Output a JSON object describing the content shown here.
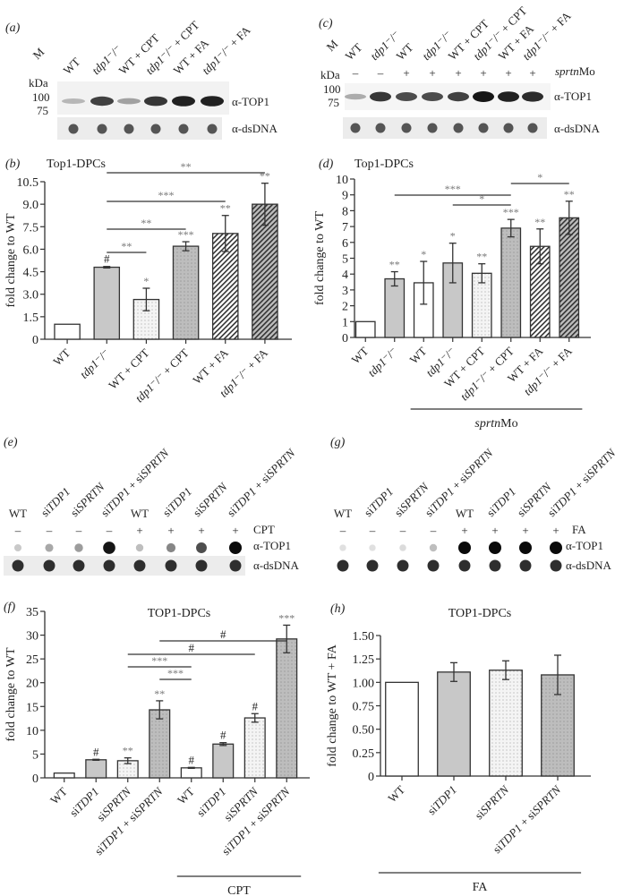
{
  "panels": {
    "a": {
      "label": "(a)",
      "marker": "M",
      "kda": "kDa",
      "mw": [
        "100",
        "75"
      ],
      "lanes": [
        "WT",
        "tdp1⁻/⁻",
        "WT + CPT",
        "tdp1⁻/⁻ + CPT",
        "WT + FA",
        "tdp1⁻/⁻ + FA"
      ],
      "blot_labels": [
        "α-TOP1",
        "α-dsDNA"
      ],
      "top1_intensity": [
        0.25,
        0.8,
        0.35,
        0.85,
        0.95,
        0.95
      ]
    },
    "c": {
      "label": "(c)",
      "marker": "M",
      "kda": "kDa",
      "mw": [
        "100",
        "75"
      ],
      "lanes": [
        "WT",
        "tdp1⁻/⁻",
        "WT",
        "tdp1⁻/⁻",
        "WT + CPT",
        "tdp1⁻/⁻ + CPT",
        "WT + FA",
        "tdp1⁻/⁻ + FA"
      ],
      "treatment_label": "sprtnMo",
      "treatment_signs": [
        "–",
        "–",
        "+",
        "+",
        "+",
        "+",
        "+",
        "+"
      ],
      "blot_labels": [
        "α-TOP1",
        "α-dsDNA"
      ],
      "top1_intensity": [
        0.3,
        0.85,
        0.75,
        0.75,
        0.8,
        1.0,
        0.95,
        0.9
      ]
    },
    "e": {
      "label": "(e)",
      "lanes": [
        "WT",
        "siTDP1",
        "siSPRTN",
        "siTDP1 + siSPRTN",
        "WT",
        "siTDP1",
        "siSPRTN",
        "siTDP1 + siSPRTN"
      ],
      "treatment_label": "CPT",
      "treatment_signs": [
        "–",
        "–",
        "–",
        "–",
        "+",
        "+",
        "+",
        "+"
      ],
      "blot_labels": [
        "α-TOP1",
        "α-dsDNA"
      ],
      "top1_intensity": [
        0.15,
        0.3,
        0.35,
        0.95,
        0.2,
        0.45,
        0.7,
        1.0
      ]
    },
    "g": {
      "label": "(g)",
      "lanes": [
        "WT",
        "siTDP1",
        "siSPRTN",
        "siTDP1 + siSPRTN",
        "WT",
        "siTDP1",
        "siSPRTN",
        "siTDP1 + siSPRTN"
      ],
      "treatment_label": "FA",
      "treatment_signs": [
        "–",
        "–",
        "–",
        "–",
        "+",
        "+",
        "+",
        "+"
      ],
      "blot_labels": [
        "α-TOP1",
        "α-dsDNA"
      ],
      "top1_intensity": [
        0.05,
        0.05,
        0.07,
        0.2,
        1.0,
        1.0,
        1.0,
        1.0
      ]
    }
  },
  "chart_data": [
    {
      "id": "b",
      "panel_label": "(b)",
      "type": "bar",
      "title": "Top1-DPCs",
      "ylabel": "fold change to WT",
      "xlabel": "",
      "ylim": [
        0,
        10.5
      ],
      "yticks": [
        "0",
        "1.5",
        "3.0",
        "4.5",
        "6.0",
        "7.5",
        "9.0",
        "10.5"
      ],
      "categories": [
        "WT",
        "tdp1⁻/⁻",
        "WT + CPT",
        "tdp1⁻/⁻ + CPT",
        "WT + FA",
        "tdp1⁻/⁻ + FA"
      ],
      "values": [
        1.0,
        4.8,
        2.65,
        6.2,
        7.05,
        9.0
      ],
      "errors": [
        0,
        0.05,
        0.75,
        0.3,
        1.2,
        1.4
      ],
      "fills": [
        "white",
        "gray",
        "dots-light",
        "dots-gray",
        "hatch",
        "hatch-gray"
      ],
      "annotations": [
        "",
        "#",
        "*",
        "***",
        "**",
        "**"
      ],
      "brackets": [
        {
          "from": 1,
          "to": 5,
          "label": "**"
        },
        {
          "from": 1,
          "to": 4,
          "label": "***"
        },
        {
          "from": 1,
          "to": 3,
          "label": "**"
        },
        {
          "from": 1,
          "to": 2,
          "label": "**"
        }
      ],
      "group_lines": []
    },
    {
      "id": "d",
      "panel_label": "(d)",
      "type": "bar",
      "title": "Top1-DPCs",
      "ylabel": "fold change to WT",
      "xlabel": "",
      "ylim": [
        0,
        10
      ],
      "yticks": [
        "0",
        "1",
        "2",
        "3",
        "4",
        "5",
        "6",
        "7",
        "8",
        "9",
        "10"
      ],
      "categories": [
        "WT",
        "tdp1⁻/⁻",
        "WT",
        "tdp1⁻/⁻",
        "WT + CPT",
        "tdp1⁻/⁻ + CPT",
        "WT + FA",
        "tdp1⁻/⁻ + FA"
      ],
      "values": [
        1.0,
        3.7,
        3.45,
        4.7,
        4.05,
        6.9,
        5.75,
        7.55
      ],
      "errors": [
        0,
        0.45,
        1.35,
        1.25,
        0.6,
        0.55,
        1.1,
        1.05
      ],
      "fills": [
        "white",
        "gray",
        "white",
        "gray",
        "dots-light",
        "dots-gray",
        "hatch",
        "hatch-gray"
      ],
      "annotations": [
        "",
        "**",
        "*",
        "*",
        "**",
        "***",
        "**",
        "**"
      ],
      "brackets": [
        {
          "from": 1,
          "to": 5,
          "label": "***"
        },
        {
          "from": 3,
          "to": 5,
          "label": "*"
        },
        {
          "from": 5,
          "to": 7,
          "label": "*"
        }
      ],
      "group_lines": [
        {
          "from": 2,
          "to": 7,
          "label": "sprtnMo"
        }
      ]
    },
    {
      "id": "f",
      "panel_label": "(f)",
      "type": "bar",
      "title": "TOP1-DPCs",
      "ylabel": "fold change to WT",
      "xlabel": "",
      "ylim": [
        0,
        35
      ],
      "yticks": [
        "0",
        "5",
        "10",
        "15",
        "20",
        "25",
        "30",
        "35"
      ],
      "categories": [
        "WT",
        "siTDP1",
        "siSPRTN",
        "siTDP1 + siSPRTN",
        "WT",
        "siTDP1",
        "siSPRTN",
        "siTDP1 + siSPRTN"
      ],
      "values": [
        1.0,
        3.8,
        3.6,
        14.3,
        2.1,
        7.1,
        12.6,
        29.2
      ],
      "errors": [
        0,
        0.1,
        0.6,
        1.9,
        0.1,
        0.3,
        0.9,
        2.9
      ],
      "fills": [
        "white",
        "gray",
        "dots-light",
        "dots-gray",
        "white",
        "gray",
        "dots-light",
        "dots-gray"
      ],
      "annotations": [
        "",
        "#",
        "**",
        "**",
        "#",
        "#",
        "#",
        "***"
      ],
      "brackets": [
        {
          "from": 3,
          "to": 7,
          "label": "#"
        },
        {
          "from": 2,
          "to": 6,
          "label": "#"
        },
        {
          "from": 2,
          "to": 4,
          "label": "***"
        },
        {
          "from": 3,
          "to": 4,
          "label": "***"
        }
      ],
      "group_lines": [
        {
          "from": 4,
          "to": 7,
          "label": "CPT"
        }
      ]
    },
    {
      "id": "h",
      "panel_label": "(h)",
      "type": "bar",
      "title": "TOP1-DPCs",
      "ylabel": "fold change to WT + FA",
      "xlabel": "",
      "ylim": [
        0,
        1.5
      ],
      "yticks": [
        "0",
        "0.25",
        "0.50",
        "0.75",
        "1.00",
        "1.25",
        "1.50"
      ],
      "categories": [
        "WT",
        "siTDP1",
        "siSPRTN",
        "siTDP1 + siSPRTN"
      ],
      "values": [
        1.0,
        1.11,
        1.13,
        1.08
      ],
      "errors": [
        0,
        0.1,
        0.1,
        0.21
      ],
      "fills": [
        "white",
        "gray",
        "dots-light",
        "dots-gray"
      ],
      "annotations": [
        "",
        "",
        "",
        ""
      ],
      "brackets": [],
      "group_lines": [
        {
          "from": 0,
          "to": 3,
          "label": "FA"
        }
      ]
    }
  ]
}
